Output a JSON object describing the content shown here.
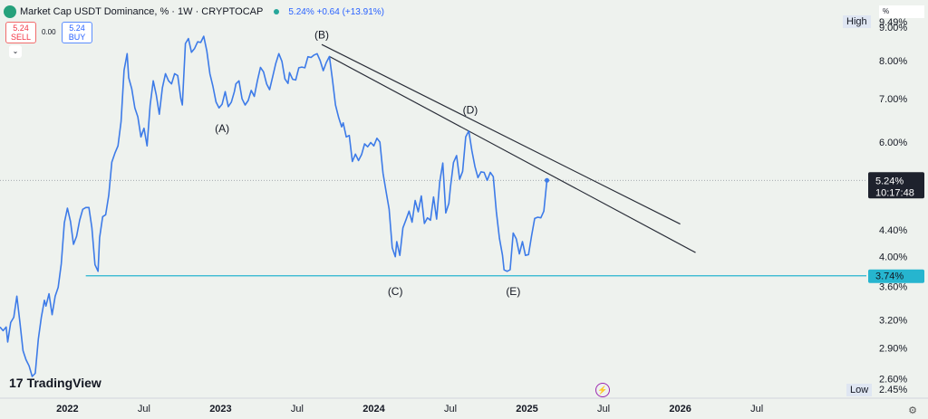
{
  "header": {
    "title": "Market Cap USDT Dominance, % · 1W · CRYPTOCAP",
    "quote": "5.24% +0.64 (+13.91%)"
  },
  "trade": {
    "sell_price": "5.24",
    "sell_label": "SELL",
    "spread": "0.00",
    "buy_price": "5.24",
    "buy_label": "BUY"
  },
  "axis_menu": "%",
  "high_label": "High",
  "low_label": "Low",
  "high_value": "9.49%",
  "low_value": "2.45%",
  "branding": "TradingView",
  "colors": {
    "line": "#3d7be8",
    "support": "#26b5cf",
    "price_tag": "#1e222d",
    "support_tag": "#26b5cf"
  },
  "chart_data": {
    "type": "line",
    "y_scale": "log",
    "ylim": [
      2.45,
      9.6
    ],
    "y_ticks": [
      2.6,
      2.9,
      3.2,
      3.6,
      4.0,
      4.4,
      6.0,
      7.0,
      8.0,
      9.0
    ],
    "y_tick_labels": [
      "2.60%",
      "2.90%",
      "3.20%",
      "3.60%",
      "4.00%",
      "4.40%",
      "6.00%",
      "7.00%",
      "8.00%",
      "9.00%"
    ],
    "x_ticks": [
      2022.0,
      2022.5,
      2023.0,
      2023.5,
      2024.0,
      2024.5,
      2025.0,
      2025.5,
      2026.0,
      2026.5
    ],
    "x_tick_labels": [
      "2022",
      "Jul",
      "2023",
      "Jul",
      "2024",
      "Jul",
      "2025",
      "Jul",
      "2026",
      "Jul"
    ],
    "xlim": [
      2021.56,
      2027.15
    ],
    "current_price": {
      "value": 5.24,
      "label": "5.24%",
      "countdown": "10:17:48"
    },
    "support": {
      "value": 3.74,
      "label": "3.74%",
      "x_start": 2022.12
    },
    "series": [
      {
        "points": [
          [
            2021.56,
            3.12
          ],
          [
            2021.58,
            3.08
          ],
          [
            2021.6,
            3.12
          ],
          [
            2021.61,
            2.96
          ],
          [
            2021.63,
            3.17
          ],
          [
            2021.65,
            3.23
          ],
          [
            2021.67,
            3.48
          ],
          [
            2021.69,
            3.17
          ],
          [
            2021.71,
            2.87
          ],
          [
            2021.73,
            2.78
          ],
          [
            2021.75,
            2.72
          ],
          [
            2021.77,
            2.62
          ],
          [
            2021.79,
            2.65
          ],
          [
            2021.81,
            2.99
          ],
          [
            2021.83,
            3.23
          ],
          [
            2021.85,
            3.43
          ],
          [
            2021.86,
            3.36
          ],
          [
            2021.88,
            3.51
          ],
          [
            2021.9,
            3.26
          ],
          [
            2021.92,
            3.48
          ],
          [
            2021.94,
            3.59
          ],
          [
            2021.96,
            3.9
          ],
          [
            2021.98,
            4.51
          ],
          [
            2022.0,
            4.75
          ],
          [
            2022.02,
            4.53
          ],
          [
            2022.04,
            4.18
          ],
          [
            2022.06,
            4.3
          ],
          [
            2022.08,
            4.55
          ],
          [
            2022.1,
            4.73
          ],
          [
            2022.12,
            4.76
          ],
          [
            2022.14,
            4.76
          ],
          [
            2022.16,
            4.43
          ],
          [
            2022.18,
            3.89
          ],
          [
            2022.2,
            3.8
          ],
          [
            2022.21,
            4.28
          ],
          [
            2022.23,
            4.61
          ],
          [
            2022.25,
            4.64
          ],
          [
            2022.27,
            4.97
          ],
          [
            2022.29,
            5.59
          ],
          [
            2022.31,
            5.77
          ],
          [
            2022.33,
            5.92
          ],
          [
            2022.35,
            6.45
          ],
          [
            2022.37,
            7.73
          ],
          [
            2022.39,
            8.2
          ],
          [
            2022.4,
            7.53
          ],
          [
            2022.42,
            7.24
          ],
          [
            2022.44,
            6.77
          ],
          [
            2022.46,
            6.56
          ],
          [
            2022.48,
            6.11
          ],
          [
            2022.5,
            6.3
          ],
          [
            2022.52,
            5.92
          ],
          [
            2022.54,
            6.84
          ],
          [
            2022.56,
            7.45
          ],
          [
            2022.58,
            7.09
          ],
          [
            2022.6,
            6.62
          ],
          [
            2022.62,
            7.27
          ],
          [
            2022.64,
            7.64
          ],
          [
            2022.66,
            7.45
          ],
          [
            2022.68,
            7.37
          ],
          [
            2022.7,
            7.64
          ],
          [
            2022.72,
            7.59
          ],
          [
            2022.74,
            7.0
          ],
          [
            2022.75,
            6.84
          ],
          [
            2022.77,
            8.5
          ],
          [
            2022.79,
            8.65
          ],
          [
            2022.81,
            8.24
          ],
          [
            2022.83,
            8.35
          ],
          [
            2022.85,
            8.55
          ],
          [
            2022.87,
            8.53
          ],
          [
            2022.89,
            8.72
          ],
          [
            2022.91,
            8.28
          ],
          [
            2022.93,
            7.64
          ],
          [
            2022.95,
            7.3
          ],
          [
            2022.97,
            6.91
          ],
          [
            2022.99,
            6.77
          ],
          [
            2023.01,
            6.86
          ],
          [
            2023.03,
            7.17
          ],
          [
            2023.05,
            6.8
          ],
          [
            2023.07,
            6.91
          ],
          [
            2023.09,
            7.17
          ],
          [
            2023.1,
            7.37
          ],
          [
            2023.12,
            7.45
          ],
          [
            2023.14,
            6.99
          ],
          [
            2023.16,
            6.84
          ],
          [
            2023.18,
            6.95
          ],
          [
            2023.2,
            7.2
          ],
          [
            2023.22,
            7.05
          ],
          [
            2023.24,
            7.45
          ],
          [
            2023.26,
            7.81
          ],
          [
            2023.28,
            7.69
          ],
          [
            2023.3,
            7.37
          ],
          [
            2023.32,
            7.22
          ],
          [
            2023.34,
            7.56
          ],
          [
            2023.36,
            7.92
          ],
          [
            2023.38,
            8.2
          ],
          [
            2023.4,
            7.98
          ],
          [
            2023.42,
            7.5
          ],
          [
            2023.44,
            7.38
          ],
          [
            2023.45,
            7.67
          ],
          [
            2023.47,
            7.49
          ],
          [
            2023.49,
            7.47
          ],
          [
            2023.51,
            7.8
          ],
          [
            2023.53,
            7.82
          ],
          [
            2023.55,
            7.8
          ],
          [
            2023.57,
            8.11
          ],
          [
            2023.59,
            8.09
          ],
          [
            2023.61,
            8.16
          ],
          [
            2023.63,
            8.2
          ],
          [
            2023.65,
            8.0
          ],
          [
            2023.67,
            7.72
          ],
          [
            2023.69,
            7.95
          ],
          [
            2023.71,
            8.12
          ],
          [
            2023.73,
            7.49
          ],
          [
            2023.75,
            6.84
          ],
          [
            2023.77,
            6.55
          ],
          [
            2023.79,
            6.33
          ],
          [
            2023.8,
            6.42
          ],
          [
            2023.82,
            6.11
          ],
          [
            2023.84,
            6.14
          ],
          [
            2023.86,
            5.6
          ],
          [
            2023.88,
            5.75
          ],
          [
            2023.9,
            5.62
          ],
          [
            2023.92,
            5.74
          ],
          [
            2023.94,
            5.96
          ],
          [
            2023.96,
            5.9
          ],
          [
            2023.98,
            5.99
          ],
          [
            2024.0,
            5.92
          ],
          [
            2024.02,
            6.08
          ],
          [
            2024.04,
            6.0
          ],
          [
            2024.06,
            5.38
          ],
          [
            2024.08,
            5.04
          ],
          [
            2024.1,
            4.73
          ],
          [
            2024.12,
            4.13
          ],
          [
            2024.14,
            4.0
          ],
          [
            2024.15,
            4.22
          ],
          [
            2024.17,
            4.02
          ],
          [
            2024.19,
            4.43
          ],
          [
            2024.21,
            4.56
          ],
          [
            2024.23,
            4.7
          ],
          [
            2024.25,
            4.52
          ],
          [
            2024.27,
            4.88
          ],
          [
            2024.29,
            4.69
          ],
          [
            2024.31,
            4.96
          ],
          [
            2024.33,
            4.5
          ],
          [
            2024.35,
            4.59
          ],
          [
            2024.37,
            4.55
          ],
          [
            2024.39,
            4.94
          ],
          [
            2024.41,
            4.57
          ],
          [
            2024.43,
            5.21
          ],
          [
            2024.45,
            5.57
          ],
          [
            2024.47,
            4.67
          ],
          [
            2024.49,
            4.83
          ],
          [
            2024.5,
            5.11
          ],
          [
            2024.52,
            5.58
          ],
          [
            2024.54,
            5.72
          ],
          [
            2024.56,
            5.26
          ],
          [
            2024.58,
            5.41
          ],
          [
            2024.6,
            6.11
          ],
          [
            2024.62,
            6.24
          ],
          [
            2024.64,
            5.82
          ],
          [
            2024.66,
            5.5
          ],
          [
            2024.68,
            5.29
          ],
          [
            2024.7,
            5.4
          ],
          [
            2024.72,
            5.39
          ],
          [
            2024.74,
            5.24
          ],
          [
            2024.76,
            5.39
          ],
          [
            2024.78,
            5.31
          ],
          [
            2024.8,
            4.69
          ],
          [
            2024.82,
            4.27
          ],
          [
            2024.84,
            4.02
          ],
          [
            2024.85,
            3.82
          ],
          [
            2024.87,
            3.8
          ],
          [
            2024.89,
            3.82
          ],
          [
            2024.91,
            4.35
          ],
          [
            2024.93,
            4.26
          ],
          [
            2024.95,
            4.04
          ],
          [
            2024.97,
            4.22
          ],
          [
            2024.99,
            4.02
          ],
          [
            2025.01,
            4.03
          ],
          [
            2025.03,
            4.31
          ],
          [
            2025.05,
            4.58
          ],
          [
            2025.07,
            4.6
          ],
          [
            2025.09,
            4.59
          ],
          [
            2025.11,
            4.7
          ],
          [
            2025.13,
            5.24
          ]
        ]
      }
    ],
    "trendlines": [
      {
        "from": [
          2023.66,
          8.47
        ],
        "to": [
          2026.0,
          4.49
        ]
      },
      {
        "from": [
          2023.71,
          8.12
        ],
        "to": [
          2026.1,
          4.06
        ]
      }
    ],
    "annotations": [
      {
        "text": "(A)",
        "x": 2023.01,
        "y": 6.29
      },
      {
        "text": "(B)",
        "x": 2023.66,
        "y": 8.76
      },
      {
        "text": "(C)",
        "x": 2024.14,
        "y": 3.54
      },
      {
        "text": "(D)",
        "x": 2024.63,
        "y": 6.72
      },
      {
        "text": "(E)",
        "x": 2024.91,
        "y": 3.54
      }
    ]
  }
}
